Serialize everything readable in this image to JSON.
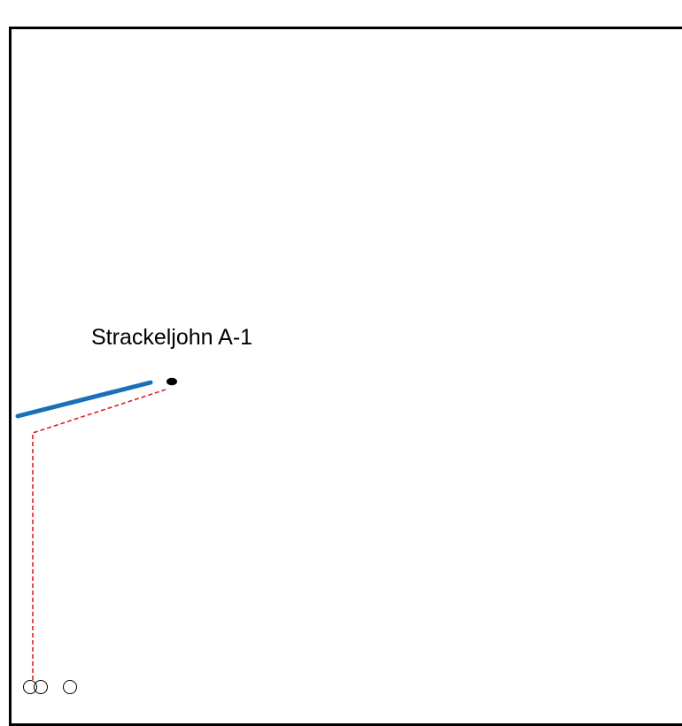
{
  "map": {
    "well": {
      "name": "Strackeljohn A-1",
      "marker_icon": "well-surface-point-icon"
    },
    "lateral": {
      "color": "#1a6fba"
    },
    "path": {
      "color": "#e02020"
    },
    "legend_symbols": [
      "circle-symbol",
      "circle-symbol",
      "circle-symbol"
    ]
  }
}
